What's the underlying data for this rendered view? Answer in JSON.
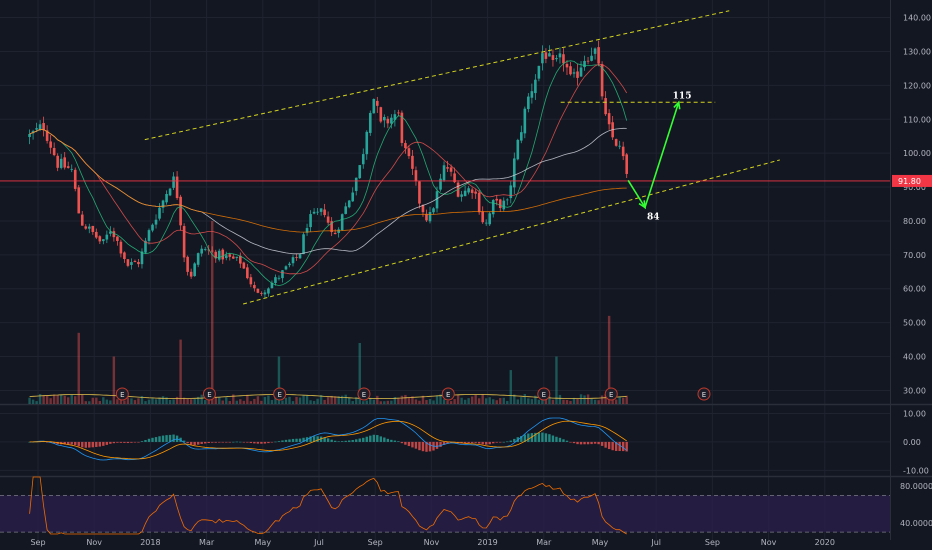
{
  "chart_data": {
    "type": "candlestick",
    "theme": {
      "background": "#131722",
      "grid": "#1f2330",
      "up": "#26a69a",
      "down": "#ef5350",
      "projection": "#33ff33",
      "channel": "#d4d41e",
      "price_line": "#f23645"
    },
    "x_axis": {
      "labels": [
        "Sep",
        "Nov",
        "2018",
        "Mar",
        "May",
        "Jul",
        "Sep",
        "Nov",
        "2019",
        "Mar",
        "May",
        "Jul",
        "Sep",
        "Nov",
        "2020"
      ],
      "label_month_index": [
        0,
        2,
        4,
        6,
        8,
        10,
        12,
        14,
        16,
        18,
        20,
        22,
        24,
        26,
        28
      ]
    },
    "price_axis": {
      "labels": [
        "140.00",
        "130.00",
        "120.00",
        "110.00",
        "100.00",
        "90.00",
        "80.00",
        "70.00",
        "60.00",
        "50.00",
        "40.00",
        "30.00"
      ],
      "values": [
        140,
        130,
        120,
        110,
        100,
        90,
        80,
        70,
        60,
        50,
        40,
        30
      ],
      "range": [
        26,
        144
      ]
    },
    "last_price": {
      "label": "91.80",
      "value": 91.8
    },
    "price_series": {
      "anchors": [
        [
          -0.3,
          105
        ],
        [
          0.2,
          108
        ],
        [
          0.7,
          97
        ],
        [
          1.2,
          95
        ],
        [
          1.5,
          80
        ],
        [
          2.0,
          76
        ],
        [
          2.3,
          73
        ],
        [
          2.6,
          78
        ],
        [
          3.2,
          67
        ],
        [
          3.6,
          68
        ],
        [
          4.0,
          78
        ],
        [
          4.5,
          87
        ],
        [
          4.8,
          93
        ],
        [
          5.0,
          86
        ],
        [
          5.2,
          70
        ],
        [
          5.4,
          63
        ],
        [
          5.8,
          72
        ],
        [
          6.4,
          70
        ],
        [
          7.2,
          68
        ],
        [
          7.8,
          58
        ],
        [
          8.5,
          63
        ],
        [
          9.3,
          70
        ],
        [
          9.6,
          80
        ],
        [
          10.2,
          83
        ],
        [
          10.5,
          75
        ],
        [
          11.0,
          85
        ],
        [
          11.5,
          97
        ],
        [
          11.9,
          118
        ],
        [
          12.2,
          108
        ],
        [
          12.8,
          112
        ],
        [
          13.0,
          102
        ],
        [
          13.3,
          95
        ],
        [
          13.6,
          85
        ],
        [
          13.9,
          80
        ],
        [
          14.2,
          88
        ],
        [
          14.5,
          97
        ],
        [
          15.0,
          88
        ],
        [
          15.5,
          90
        ],
        [
          15.9,
          78
        ],
        [
          16.2,
          85
        ],
        [
          16.7,
          85
        ],
        [
          17.0,
          100
        ],
        [
          17.4,
          115
        ],
        [
          17.8,
          125
        ],
        [
          18.0,
          131
        ],
        [
          18.3,
          125
        ],
        [
          18.7,
          128
        ],
        [
          19.0,
          120
        ],
        [
          19.4,
          128
        ],
        [
          19.8,
          131
        ],
        [
          20.0,
          122
        ],
        [
          20.2,
          110
        ],
        [
          20.4,
          105
        ],
        [
          20.6,
          103
        ],
        [
          20.85,
          98
        ],
        [
          21.0,
          91.8
        ]
      ],
      "candles_per_month": 8
    },
    "moving_averages": [
      {
        "color": "#26c281",
        "period": 10
      },
      {
        "color": "#ef5350",
        "period": 20
      },
      {
        "color": "#d1d4dc",
        "period": 50
      },
      {
        "color": "#f57c00",
        "period": 200
      }
    ],
    "channel": {
      "upper": {
        "from": [
          3.8,
          104
        ],
        "to": [
          24.6,
          142
        ]
      },
      "lower": {
        "from": [
          7.3,
          55.5
        ],
        "to": [
          26.4,
          98
        ]
      }
    },
    "horizontal_level": {
      "from": [
        18.6,
        115
      ],
      "to": [
        24.1,
        115
      ]
    },
    "projection": {
      "points": [
        [
          21.0,
          92
        ],
        [
          21.6,
          84
        ],
        [
          22.8,
          115
        ]
      ],
      "labels": [
        {
          "text": "84",
          "value": 84
        },
        {
          "text": "115",
          "value": 115
        }
      ]
    },
    "earnings": {
      "glyph": "E",
      "month_index": [
        3.0,
        6.1,
        8.6,
        11.6,
        14.6,
        18.0,
        20.4,
        23.7
      ]
    },
    "volume": {
      "base_value": 26,
      "spikes": [
        [
          1.5,
          47
        ],
        [
          2.7,
          40
        ],
        [
          5.1,
          45
        ],
        [
          6.2,
          80
        ],
        [
          8.6,
          40
        ],
        [
          11.5,
          44
        ],
        [
          16.8,
          36
        ],
        [
          18.5,
          40
        ],
        [
          20.3,
          52
        ]
      ]
    },
    "macd_panel": {
      "labels": [
        "10.00",
        "0.00",
        "-10.00"
      ],
      "values": [
        10,
        0,
        -10
      ],
      "range": [
        -12,
        13
      ],
      "line_color": "#2196f3",
      "signal_color": "#ff9800",
      "hist_up": "#26a69a",
      "hist_down": "#ef5350"
    },
    "rsi_panel": {
      "labels": [
        "80.0000",
        "40.0000"
      ],
      "values": [
        80,
        40
      ],
      "range": [
        28,
        90
      ],
      "upper_band": 70,
      "lower band": 30,
      "band_fill": "#2a1f4a",
      "line_color": "#ef6c00"
    }
  }
}
